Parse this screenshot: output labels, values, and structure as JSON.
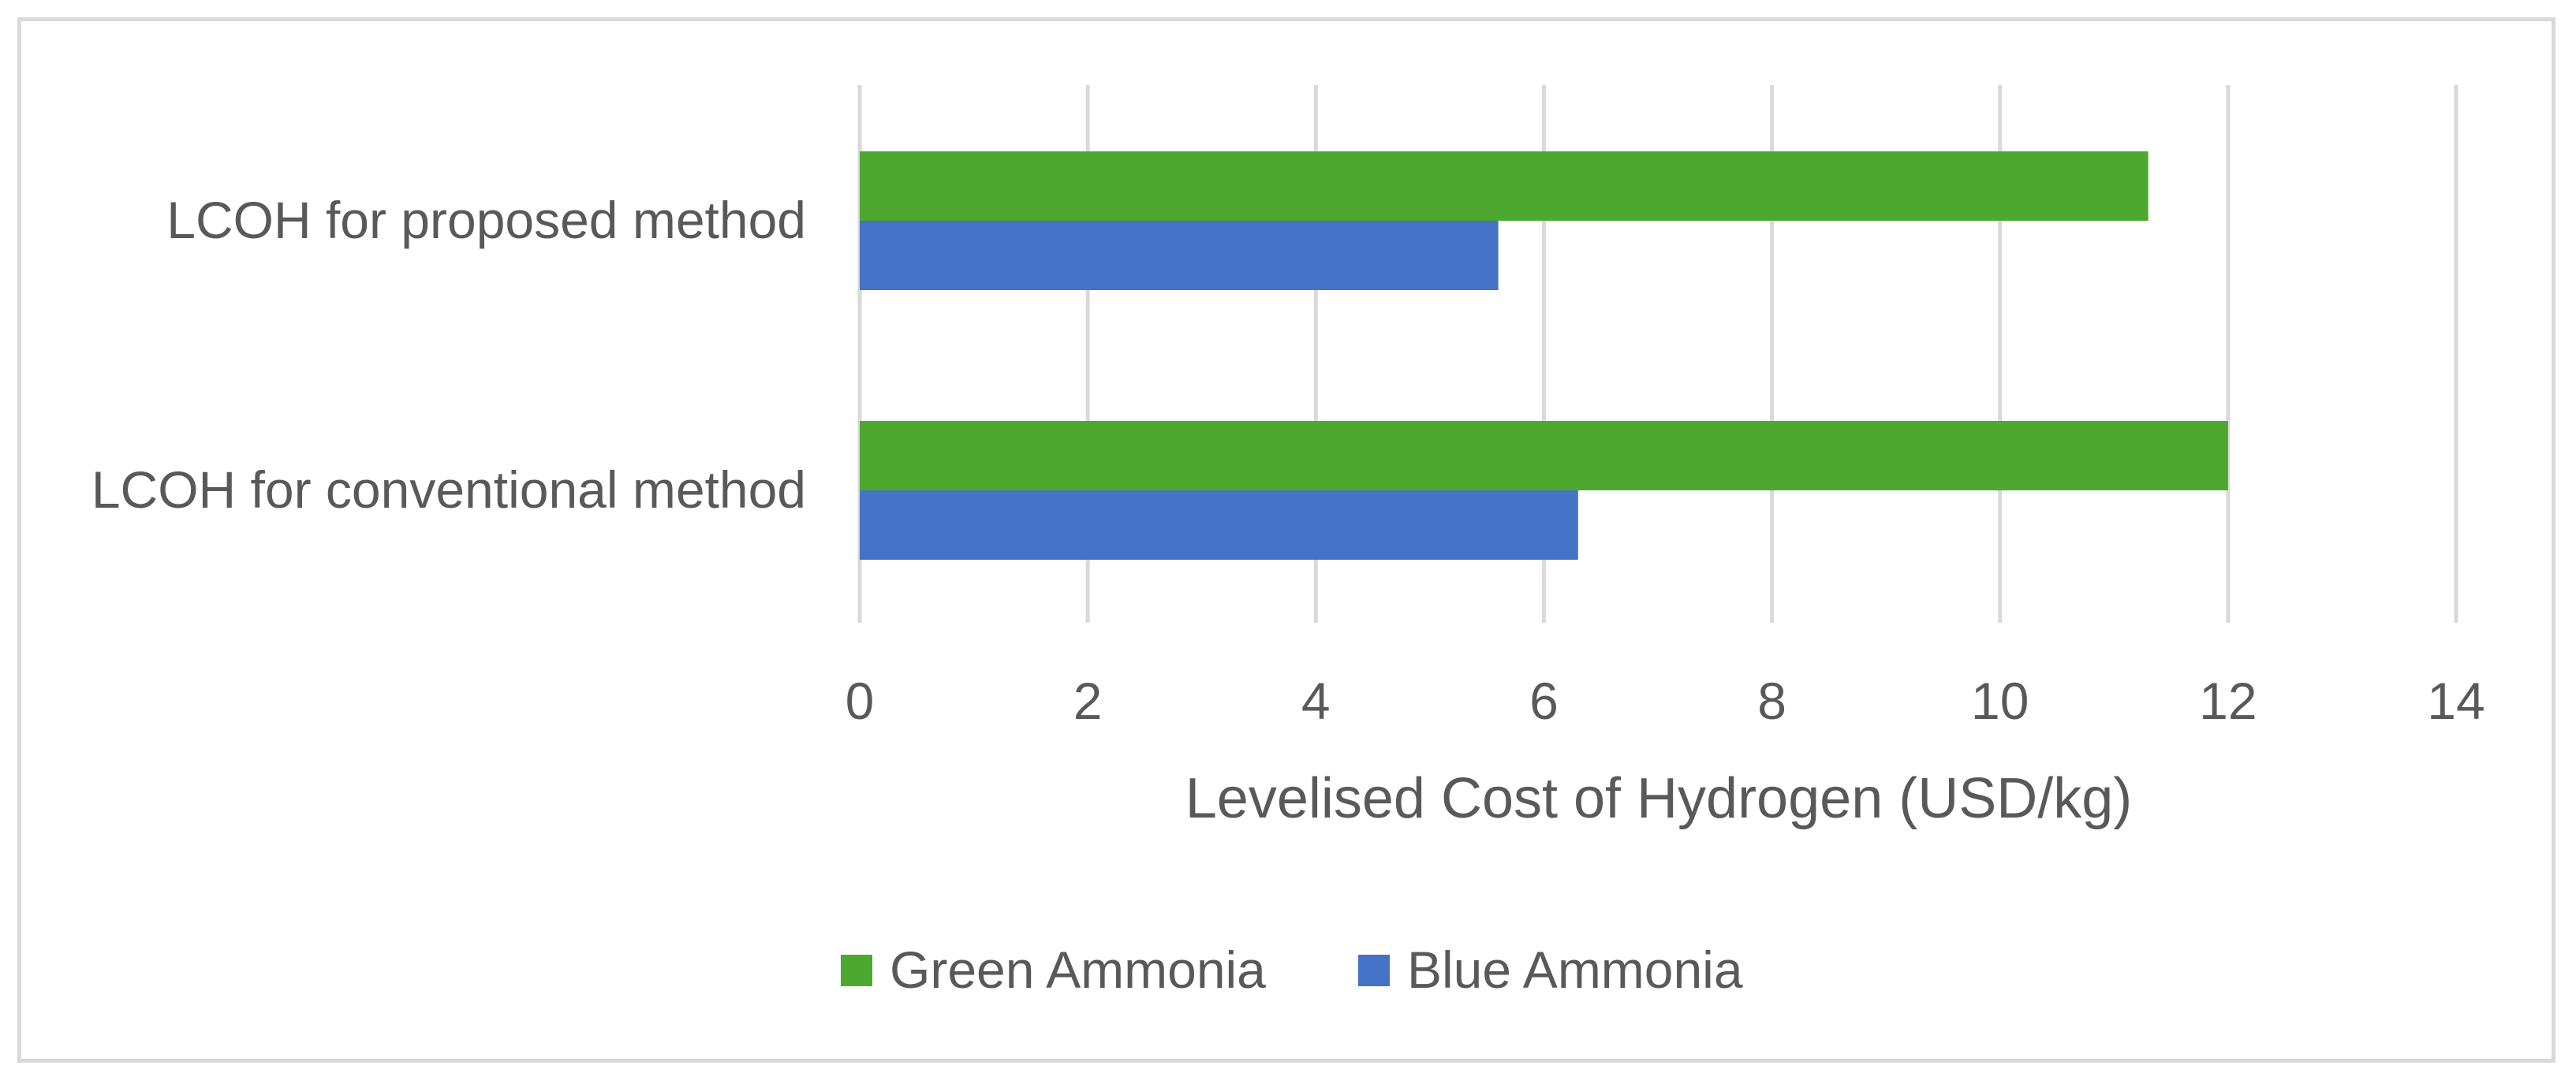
{
  "chart_data": {
    "type": "bar",
    "orientation": "horizontal",
    "title": "",
    "categories": [
      "LCOH for proposed method",
      "LCOH for conventional method"
    ],
    "series": [
      {
        "name": "Green Ammonia",
        "color": "#4ea72e",
        "values": [
          11.3,
          12.0
        ]
      },
      {
        "name": "Blue Ammonia",
        "color": "#4472c4",
        "values": [
          5.6,
          6.3
        ]
      }
    ],
    "xlabel": "Levelised Cost of Hydrogen (USD/kg)",
    "ylabel": "",
    "xlim": [
      0,
      14
    ],
    "xticks": [
      0,
      2,
      4,
      6,
      8,
      10,
      12,
      14
    ],
    "grid": true,
    "legend_position": "bottom"
  }
}
